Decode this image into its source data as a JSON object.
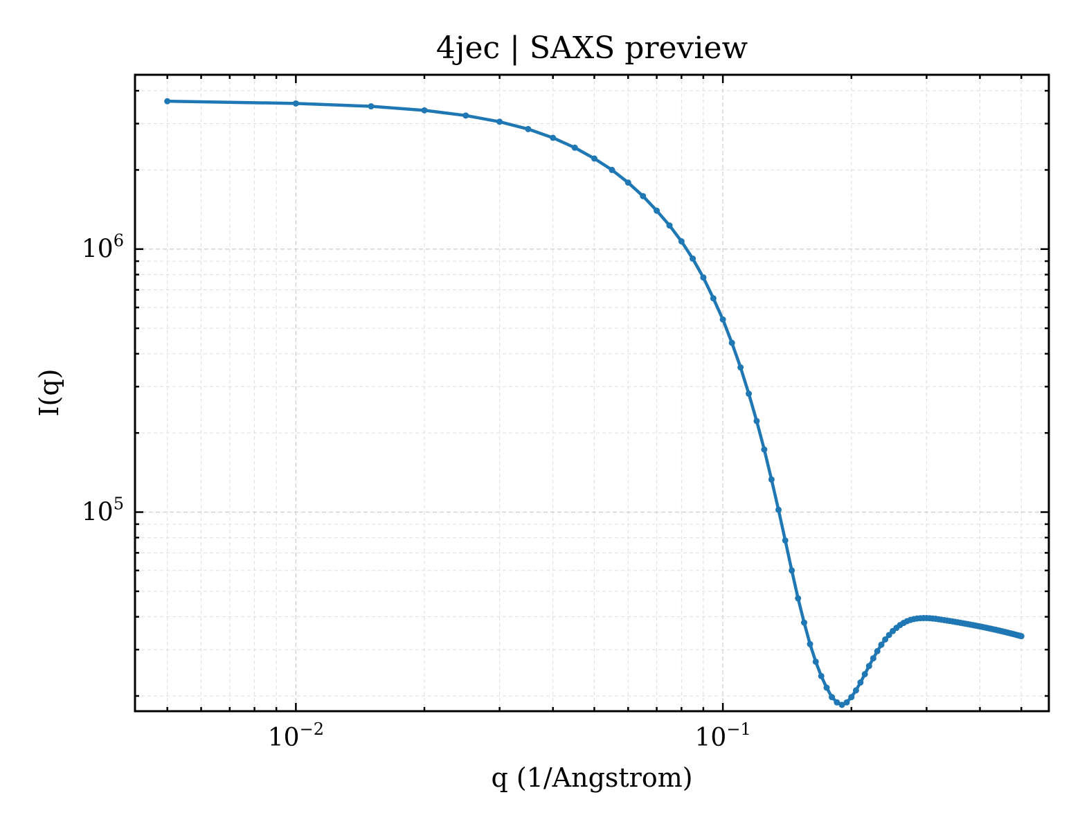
{
  "chart_data": {
    "type": "line",
    "title": "4jec | SAXS preview",
    "xlabel": "q (1/Angstrom)",
    "ylabel": "I(q)",
    "xscale": "log",
    "yscale": "log",
    "xlim": [
      0.0042,
      0.58
    ],
    "ylim": [
      17500,
      4600000
    ],
    "grid": true,
    "x_ticks": [
      {
        "value": 0.01,
        "base": "10",
        "exp": "−2"
      },
      {
        "value": 0.1,
        "base": "10",
        "exp": "−1"
      }
    ],
    "y_ticks": [
      {
        "value": 100000,
        "base": "10",
        "exp": "5"
      },
      {
        "value": 1000000,
        "base": "10",
        "exp": "6"
      }
    ],
    "colors": {
      "line": "#1f77b4"
    },
    "series": [
      {
        "x": [
          0.005,
          0.01,
          0.015,
          0.02,
          0.025,
          0.03,
          0.035,
          0.04,
          0.045,
          0.05,
          0.055,
          0.06,
          0.065,
          0.07,
          0.075,
          0.08,
          0.085,
          0.09,
          0.095,
          0.1,
          0.105,
          0.11,
          0.115,
          0.12,
          0.125,
          0.13,
          0.135,
          0.14,
          0.145,
          0.15,
          0.155,
          0.16,
          0.165,
          0.17,
          0.175,
          0.18,
          0.185,
          0.19,
          0.195,
          0.2,
          0.205,
          0.21,
          0.215,
          0.22,
          0.225,
          0.23,
          0.235,
          0.24,
          0.245,
          0.25,
          0.255,
          0.26,
          0.265,
          0.27,
          0.275,
          0.28,
          0.285,
          0.29,
          0.295,
          0.3,
          0.305,
          0.31,
          0.315,
          0.32,
          0.325,
          0.33,
          0.335,
          0.34,
          0.345,
          0.35,
          0.355,
          0.36,
          0.365,
          0.37,
          0.375,
          0.38,
          0.385,
          0.39,
          0.395,
          0.4,
          0.405,
          0.41,
          0.415,
          0.42,
          0.425,
          0.43,
          0.435,
          0.44,
          0.445,
          0.45,
          0.455,
          0.46,
          0.465,
          0.47,
          0.475,
          0.48,
          0.485,
          0.49,
          0.495,
          0.5
        ],
        "y": [
          3650000,
          3580000,
          3490000,
          3370000,
          3220000,
          3050000,
          2860000,
          2650000,
          2430000,
          2210000,
          2000000,
          1790000,
          1590000,
          1400000,
          1230000,
          1070000,
          920000,
          780000,
          650000,
          540000,
          440000,
          355000,
          282000,
          222000,
          173000,
          133000,
          102000,
          78000,
          60000,
          47000,
          38000,
          31500,
          27000,
          23800,
          21500,
          19800,
          18900,
          18500,
          18900,
          19800,
          21000,
          22500,
          24200,
          26000,
          27800,
          29600,
          31300,
          32800,
          34100,
          35300,
          36300,
          37200,
          37900,
          38500,
          38900,
          39200,
          39400,
          39500,
          39550,
          39550,
          39500,
          39400,
          39300,
          39150,
          39000,
          38850,
          38700,
          38550,
          38400,
          38250,
          38100,
          37950,
          37800,
          37650,
          37500,
          37350,
          37200,
          37050,
          36900,
          36750,
          36600,
          36450,
          36300,
          36150,
          36000,
          35850,
          35700,
          35550,
          35400,
          35250,
          35100,
          34950,
          34800,
          34650,
          34500,
          34350,
          34200,
          34050,
          33900,
          33750
        ]
      }
    ]
  }
}
